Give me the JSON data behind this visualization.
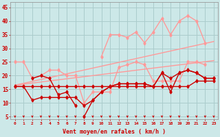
{
  "background_color": "#cce8e8",
  "grid_color": "#aacccc",
  "xlabel": "Vent moyen/en rafales ( km/h )",
  "yticks": [
    5,
    10,
    15,
    20,
    25,
    30,
    35,
    40,
    45
  ],
  "xlim": [
    -0.5,
    23.5
  ],
  "ylim": [
    4,
    47
  ],
  "xtick_labels": [
    "0",
    "1",
    "2",
    "3",
    "4",
    "5",
    "6",
    "7",
    "8",
    "9",
    "10",
    "11",
    "12",
    "13",
    "14",
    "15",
    "16",
    "17",
    "18",
    "19",
    "20",
    "21",
    "22",
    "23"
  ],
  "trend1_x": [
    0,
    23
  ],
  "trend1_y": [
    16.5,
    32.5
  ],
  "trend2_x": [
    0,
    23
  ],
  "trend2_y": [
    16.5,
    25.5
  ],
  "pink_upper_x": [
    10,
    11,
    12,
    13,
    14,
    15,
    16,
    17,
    18,
    19,
    20,
    21,
    22
  ],
  "pink_upper_y": [
    27,
    35,
    35,
    34,
    36,
    32,
    36,
    41,
    35,
    40,
    42,
    40,
    32
  ],
  "pink_mid_x": [
    0,
    1,
    2,
    3,
    4,
    5,
    6,
    7,
    8,
    9,
    10,
    11,
    12,
    13,
    14,
    15,
    16,
    17,
    18,
    19,
    20,
    21,
    22
  ],
  "pink_mid_y": [
    25,
    25,
    19,
    20,
    22,
    22,
    20,
    20,
    10,
    14,
    14,
    14,
    23,
    24,
    25,
    24,
    18,
    18,
    18,
    18,
    25,
    25,
    24
  ],
  "dr_main_x": [
    0,
    1,
    2,
    3,
    4,
    5,
    6,
    7,
    8,
    9,
    10,
    11,
    12,
    13,
    14,
    15,
    16,
    17,
    18,
    19,
    20,
    21,
    22,
    23
  ],
  "dr_main_y": [
    16,
    16,
    11,
    12,
    12,
    12,
    12,
    12,
    9,
    11,
    14,
    16,
    17,
    17,
    17,
    17,
    16,
    21,
    19,
    21,
    22,
    21,
    19,
    19
  ],
  "dr_dip_x": [
    8,
    9,
    10,
    11,
    12,
    13,
    14,
    15,
    16,
    17,
    18,
    19,
    20,
    21,
    22,
    23
  ],
  "dr_dip_y": [
    5,
    11,
    14,
    16,
    17,
    17,
    17,
    17,
    16,
    21,
    14,
    21,
    22,
    21,
    19,
    19
  ],
  "dr_short_x": [
    2,
    3,
    4,
    5,
    6,
    7
  ],
  "dr_short_y": [
    19,
    20,
    19,
    13,
    14,
    9
  ],
  "dr_flat_x": [
    0,
    1,
    2,
    3,
    4,
    5,
    6,
    7,
    8,
    9,
    10,
    11,
    12,
    13,
    14,
    15,
    16,
    17,
    18,
    19,
    20,
    21,
    22,
    23
  ],
  "dr_flat_y": [
    16,
    16,
    16,
    16,
    16,
    16,
    16,
    16,
    16,
    16,
    16,
    16,
    16,
    16,
    16,
    16,
    16,
    16,
    16,
    16,
    16,
    18,
    18,
    18
  ],
  "pink_color": "#ff9999",
  "dark_red_color": "#cc0000",
  "marker": 4,
  "lw": 1.0,
  "ms": 2.5
}
